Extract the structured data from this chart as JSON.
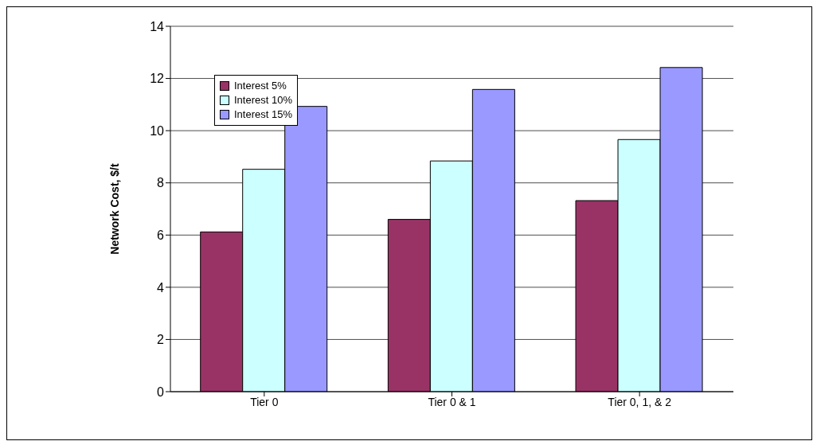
{
  "chart_data": {
    "type": "bar",
    "ylabel": "Network Cost, $/t",
    "categories": [
      "Tier 0",
      "Tier 0 & 1",
      "Tier 0, 1, & 2"
    ],
    "series": [
      {
        "name": "Interest 5%",
        "color": "#993366",
        "values": [
          6.12,
          6.6,
          7.32
        ]
      },
      {
        "name": "Interest 10%",
        "color": "#ccffff",
        "values": [
          8.52,
          8.84,
          9.66
        ]
      },
      {
        "name": "Interest 15%",
        "color": "#9999ff",
        "values": [
          10.93,
          11.58,
          12.42
        ]
      }
    ],
    "ylim": [
      0,
      14
    ],
    "yticks": [
      0,
      2,
      4,
      6,
      8,
      10,
      12,
      14
    ],
    "grid": "y",
    "legend": "top left"
  }
}
